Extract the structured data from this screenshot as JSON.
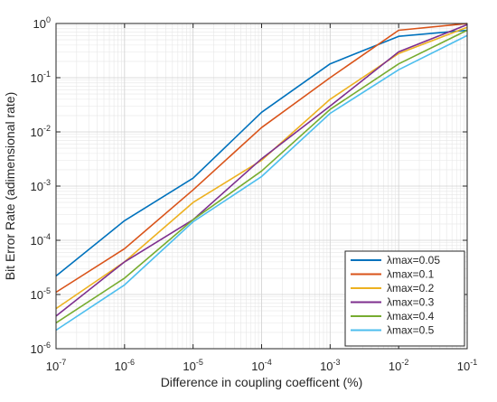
{
  "chart_data": {
    "type": "line",
    "xlabel": "Difference in coupling coefficent (%)",
    "ylabel": "Bit Error Rate (adimensional rate)",
    "xscale": "log",
    "yscale": "log",
    "xlim": [
      1e-07,
      0.1
    ],
    "ylim": [
      1e-06,
      1
    ],
    "grid": "on (major and minor)",
    "legend_position": "bottom-right",
    "x_ticks": [
      {
        "value": 1e-07,
        "base": "10",
        "exp": "-7"
      },
      {
        "value": 1e-06,
        "base": "10",
        "exp": "-6"
      },
      {
        "value": 1e-05,
        "base": "10",
        "exp": "-5"
      },
      {
        "value": 0.0001,
        "base": "10",
        "exp": "-4"
      },
      {
        "value": 0.001,
        "base": "10",
        "exp": "-3"
      },
      {
        "value": 0.01,
        "base": "10",
        "exp": "-2"
      },
      {
        "value": 0.1,
        "base": "10",
        "exp": "-1"
      }
    ],
    "y_ticks": [
      {
        "value": 1e-06,
        "base": "10",
        "exp": "-6"
      },
      {
        "value": 1e-05,
        "base": "10",
        "exp": "-5"
      },
      {
        "value": 0.0001,
        "base": "10",
        "exp": "-4"
      },
      {
        "value": 0.001,
        "base": "10",
        "exp": "-3"
      },
      {
        "value": 0.01,
        "base": "10",
        "exp": "-2"
      },
      {
        "value": 0.1,
        "base": "10",
        "exp": "-1"
      },
      {
        "value": 1,
        "base": "10",
        "exp": "0"
      }
    ],
    "x": [
      1e-07,
      1e-06,
      1e-05,
      0.0001,
      0.001,
      0.01,
      0.1
    ],
    "series": [
      {
        "name": "λmax=0.05",
        "color": "#0072BD",
        "values": [
          2.2e-05,
          0.00023,
          0.0014,
          0.023,
          0.18,
          0.58,
          0.75
        ]
      },
      {
        "name": "λmax=0.1",
        "color": "#D95319",
        "values": [
          1.1e-05,
          7e-05,
          0.00085,
          0.012,
          0.1,
          0.75,
          1.0
        ]
      },
      {
        "name": "λmax=0.2",
        "color": "#EDB120",
        "values": [
          5.5e-06,
          4e-05,
          0.0005,
          0.003,
          0.04,
          0.28,
          0.85
        ]
      },
      {
        "name": "λmax=0.3",
        "color": "#7E2F8E",
        "values": [
          4e-06,
          4e-05,
          0.00024,
          0.0032,
          0.03,
          0.3,
          0.95
        ]
      },
      {
        "name": "λmax=0.4",
        "color": "#77AC30",
        "values": [
          3e-06,
          2e-05,
          0.00024,
          0.0019,
          0.026,
          0.18,
          0.75
        ]
      },
      {
        "name": "λmax=0.5",
        "color": "#4DBEEE",
        "values": [
          2.2e-06,
          1.5e-05,
          0.00022,
          0.0015,
          0.022,
          0.14,
          0.6
        ]
      }
    ]
  }
}
